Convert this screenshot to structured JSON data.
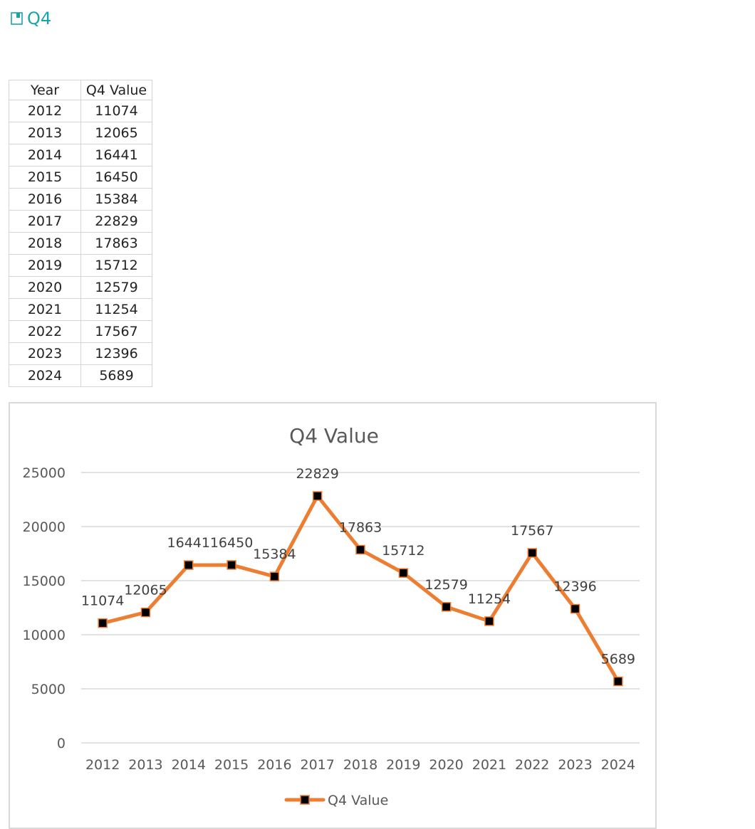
{
  "heading": {
    "title": "Q4",
    "icon": "bookmark-page-icon",
    "color": "#1aa3a8"
  },
  "table": {
    "headers": [
      "Year",
      "Q4 Value"
    ],
    "rows": [
      [
        "2012",
        "11074"
      ],
      [
        "2013",
        "12065"
      ],
      [
        "2014",
        "16441"
      ],
      [
        "2015",
        "16450"
      ],
      [
        "2016",
        "15384"
      ],
      [
        "2017",
        "22829"
      ],
      [
        "2018",
        "17863"
      ],
      [
        "2019",
        "15712"
      ],
      [
        "2020",
        "12579"
      ],
      [
        "2021",
        "11254"
      ],
      [
        "2022",
        "17567"
      ],
      [
        "2023",
        "12396"
      ],
      [
        "2024",
        "5689"
      ]
    ]
  },
  "chart_data": {
    "type": "line",
    "title": "Q4 Value",
    "xlabel": "",
    "ylabel": "",
    "categories": [
      "2012",
      "2013",
      "2014",
      "2015",
      "2016",
      "2017",
      "2018",
      "2019",
      "2020",
      "2021",
      "2022",
      "2023",
      "2024"
    ],
    "series": [
      {
        "name": "Q4 Value",
        "values": [
          11074,
          12065,
          16441,
          16450,
          15384,
          22829,
          17863,
          15712,
          12579,
          11254,
          17567,
          12396,
          5689
        ],
        "color": "#ed7d31",
        "marker_color": "#000000"
      }
    ],
    "ylim": [
      0,
      25000
    ],
    "yticks": [
      0,
      5000,
      10000,
      15000,
      20000,
      25000
    ],
    "grid": true,
    "data_labels": true,
    "legend_position": "bottom"
  }
}
